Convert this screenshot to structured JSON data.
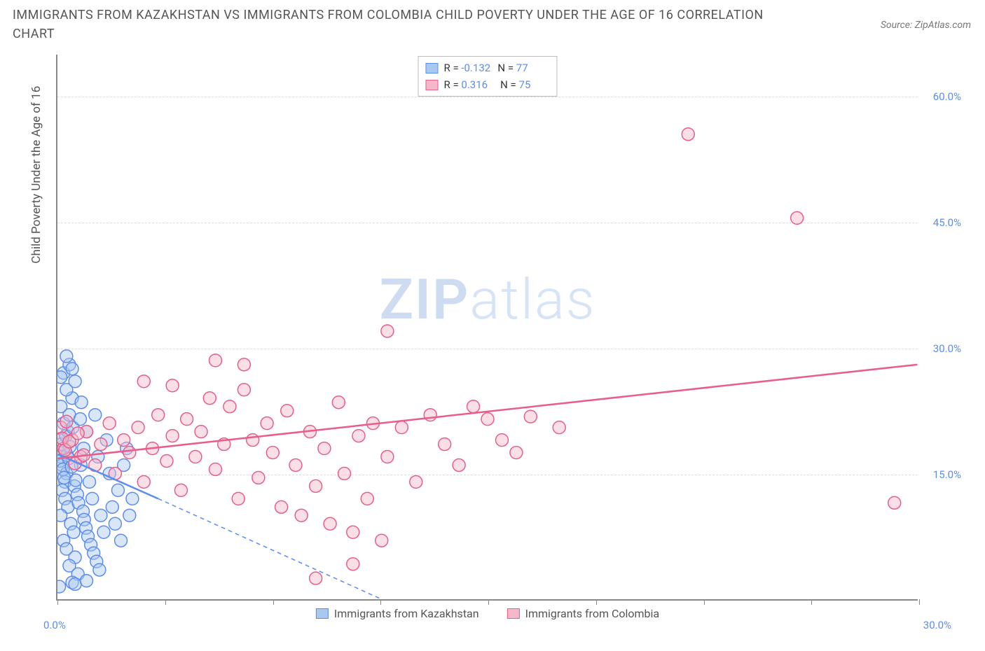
{
  "title": "IMMIGRANTS FROM KAZAKHSTAN VS IMMIGRANTS FROM COLOMBIA CHILD POVERTY UNDER THE AGE OF 16 CORRELATION CHART",
  "source": "Source: ZipAtlas.com",
  "watermark": {
    "part1": "ZIP",
    "part2": "atlas"
  },
  "chart": {
    "type": "scatter",
    "xlim": [
      0,
      30
    ],
    "ylim": [
      0,
      65
    ],
    "x_ticks": [
      0,
      3.75,
      7.5,
      11.25,
      15,
      18.75,
      22.5,
      26.25,
      30
    ],
    "x_tick_labels": {
      "0": "0.0%",
      "30": "30.0%"
    },
    "y_gridlines": [
      15,
      30,
      45,
      60
    ],
    "y_tick_labels": [
      "15.0%",
      "30.0%",
      "45.0%",
      "60.0%"
    ],
    "y_axis_label": "Child Poverty Under the Age of 16",
    "background_color": "#ffffff",
    "grid_color": "#dddddd",
    "axis_color": "#888888",
    "tick_label_color": "#5b8def",
    "marker_radius": 9,
    "marker_stroke_width": 1.5,
    "line_width": 2.5,
    "series": [
      {
        "name": "Immigrants from Kazakhstan",
        "color_fill": "#a8c8f0",
        "color_stroke": "#5b8def",
        "fill_opacity": 0.45,
        "R": "-0.132",
        "N": "77",
        "trend_solid": {
          "x1": 0,
          "y1": 17.3,
          "x2": 3.5,
          "y2": 12.0
        },
        "trend_dashed": {
          "x1": 3.5,
          "y1": 12.0,
          "x2": 11.3,
          "y2": 0
        },
        "points": [
          [
            0.1,
            17
          ],
          [
            0.2,
            18
          ],
          [
            0.15,
            16
          ],
          [
            0.3,
            15
          ],
          [
            0.25,
            14
          ],
          [
            0.1,
            19
          ],
          [
            0.35,
            20
          ],
          [
            0.2,
            21
          ],
          [
            0.4,
            22
          ],
          [
            0.1,
            23
          ],
          [
            0.5,
            24
          ],
          [
            0.3,
            25
          ],
          [
            0.6,
            26
          ],
          [
            0.2,
            27
          ],
          [
            0.4,
            28
          ],
          [
            0.15,
            13
          ],
          [
            0.25,
            12
          ],
          [
            0.35,
            11
          ],
          [
            0.1,
            10
          ],
          [
            0.45,
            9
          ],
          [
            0.55,
            8
          ],
          [
            0.2,
            7
          ],
          [
            0.3,
            6
          ],
          [
            0.6,
            5
          ],
          [
            0.4,
            4
          ],
          [
            0.7,
            3
          ],
          [
            0.5,
            2
          ],
          [
            0.8,
            16
          ],
          [
            0.9,
            18
          ],
          [
            1.0,
            20
          ],
          [
            1.1,
            14
          ],
          [
            1.2,
            12
          ],
          [
            1.3,
            22
          ],
          [
            1.4,
            17
          ],
          [
            1.5,
            10
          ],
          [
            1.6,
            8
          ],
          [
            1.7,
            19
          ],
          [
            1.8,
            15
          ],
          [
            1.9,
            11
          ],
          [
            2.0,
            9
          ],
          [
            2.1,
            13
          ],
          [
            2.2,
            7
          ],
          [
            2.3,
            16
          ],
          [
            2.4,
            18
          ],
          [
            2.5,
            10
          ],
          [
            2.6,
            12
          ],
          [
            0.05,
            17.5
          ],
          [
            0.08,
            16.5
          ],
          [
            0.12,
            18.5
          ],
          [
            0.18,
            15.5
          ],
          [
            0.22,
            14.5
          ],
          [
            0.28,
            19.5
          ],
          [
            0.32,
            17.2
          ],
          [
            0.38,
            16.8
          ],
          [
            0.42,
            18.2
          ],
          [
            0.48,
            15.8
          ],
          [
            0.52,
            20.5
          ],
          [
            0.58,
            13.5
          ],
          [
            0.62,
            14.2
          ],
          [
            0.68,
            12.5
          ],
          [
            0.72,
            11.5
          ],
          [
            0.78,
            21.5
          ],
          [
            0.82,
            23.5
          ],
          [
            0.88,
            10.5
          ],
          [
            0.92,
            9.5
          ],
          [
            0.98,
            8.5
          ],
          [
            1.05,
            7.5
          ],
          [
            1.15,
            6.5
          ],
          [
            1.25,
            5.5
          ],
          [
            1.35,
            4.5
          ],
          [
            1.45,
            3.5
          ],
          [
            0.05,
            1.5
          ],
          [
            0.6,
            1.8
          ],
          [
            1.0,
            2.2
          ],
          [
            0.3,
            29
          ],
          [
            0.1,
            26.5
          ],
          [
            0.5,
            27.5
          ]
        ]
      },
      {
        "name": "Immigrants from Colombia",
        "color_fill": "#f5b8c8",
        "color_stroke": "#e85d8a",
        "fill_opacity": 0.45,
        "R": "0.316",
        "N": "75",
        "trend_solid": {
          "x1": 0,
          "y1": 16.8,
          "x2": 30,
          "y2": 28.0
        },
        "trend_dashed": null,
        "points": [
          [
            0.2,
            18
          ],
          [
            0.5,
            19
          ],
          [
            0.8,
            17
          ],
          [
            1.0,
            20
          ],
          [
            1.3,
            16
          ],
          [
            1.5,
            18.5
          ],
          [
            1.8,
            21
          ],
          [
            2.0,
            15
          ],
          [
            2.3,
            19
          ],
          [
            2.5,
            17.5
          ],
          [
            2.8,
            20.5
          ],
          [
            3.0,
            14
          ],
          [
            3.3,
            18
          ],
          [
            3.5,
            22
          ],
          [
            3.8,
            16.5
          ],
          [
            4.0,
            19.5
          ],
          [
            4.3,
            13
          ],
          [
            4.5,
            21.5
          ],
          [
            4.8,
            17
          ],
          [
            5.0,
            20
          ],
          [
            5.3,
            24
          ],
          [
            5.5,
            15.5
          ],
          [
            5.8,
            18.5
          ],
          [
            6.0,
            23
          ],
          [
            6.3,
            12
          ],
          [
            6.5,
            25
          ],
          [
            6.8,
            19
          ],
          [
            7.0,
            14.5
          ],
          [
            7.3,
            21
          ],
          [
            7.5,
            17.5
          ],
          [
            7.8,
            11
          ],
          [
            8.0,
            22.5
          ],
          [
            8.3,
            16
          ],
          [
            8.5,
            10
          ],
          [
            8.8,
            20
          ],
          [
            9.0,
            13.5
          ],
          [
            9.3,
            18
          ],
          [
            9.5,
            9
          ],
          [
            9.8,
            23.5
          ],
          [
            10.0,
            15
          ],
          [
            10.3,
            8
          ],
          [
            10.5,
            19.5
          ],
          [
            10.8,
            12
          ],
          [
            11.0,
            21
          ],
          [
            11.3,
            7
          ],
          [
            11.5,
            17
          ],
          [
            12.0,
            20.5
          ],
          [
            12.5,
            14
          ],
          [
            13.0,
            22
          ],
          [
            13.5,
            18.5
          ],
          [
            14.0,
            16
          ],
          [
            14.5,
            23
          ],
          [
            15.0,
            21.5
          ],
          [
            15.5,
            19
          ],
          [
            16.0,
            17.5
          ],
          [
            10.3,
            4.2
          ],
          [
            9.0,
            2.5
          ],
          [
            5.5,
            28.5
          ],
          [
            6.5,
            28
          ],
          [
            4.0,
            25.5
          ],
          [
            3.0,
            26
          ],
          [
            11.5,
            32
          ],
          [
            16.5,
            21.8
          ],
          [
            17.5,
            20.5
          ],
          [
            22.0,
            55.5
          ],
          [
            25.8,
            45.5
          ],
          [
            29.2,
            11.5
          ],
          [
            0.1,
            20.5
          ],
          [
            0.15,
            19.2
          ],
          [
            0.25,
            17.8
          ],
          [
            0.3,
            21.2
          ],
          [
            0.4,
            18.8
          ],
          [
            0.6,
            16.2
          ],
          [
            0.7,
            19.8
          ],
          [
            0.9,
            17.2
          ]
        ]
      }
    ],
    "legend_bottom": [
      {
        "label": "Immigrants from Kazakhstan",
        "fill": "#a8c8f0",
        "stroke": "#5b8def"
      },
      {
        "label": "Immigrants from Colombia",
        "fill": "#f5b8c8",
        "stroke": "#e85d8a"
      }
    ]
  }
}
